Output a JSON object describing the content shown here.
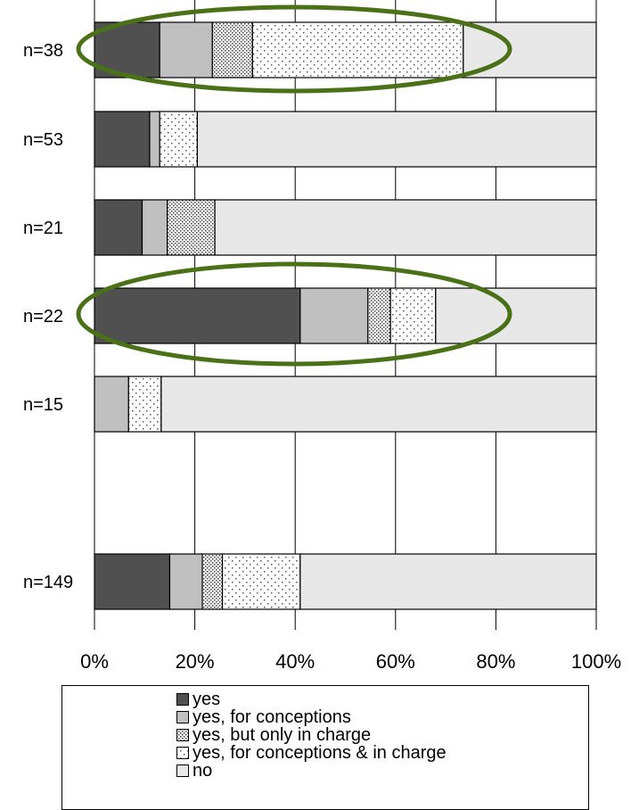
{
  "chart_data": {
    "type": "bar",
    "orientation": "horizontal",
    "stacked": true,
    "normalized": true,
    "categories": [
      "n=38",
      "n=53",
      "n=21",
      "n=22",
      "n=15",
      "n=149"
    ],
    "series": [
      {
        "name": "yes",
        "values": [
          13,
          11,
          9.5,
          41,
          0,
          15
        ],
        "pattern": "solid",
        "color": "#505050"
      },
      {
        "name": "yes, for conceptions",
        "values": [
          10.5,
          2,
          5,
          13.5,
          6.8,
          6.5
        ],
        "pattern": "solid",
        "color": "#c0c0c0"
      },
      {
        "name": "yes, but only in charge",
        "values": [
          8,
          0,
          9.5,
          4.5,
          0,
          4
        ],
        "pattern": "dense-dots",
        "color": "#a0a0a0"
      },
      {
        "name": "yes, for conceptions & in charge",
        "values": [
          42,
          7.5,
          0,
          9,
          6.5,
          15.5
        ],
        "pattern": "sparse-dots",
        "color": "#ffffff"
      },
      {
        "name": "no",
        "values": [
          26.5,
          79.5,
          76,
          32,
          86.7,
          59
        ],
        "pattern": "solid",
        "color": "#e8e8e8"
      }
    ],
    "xticks": [
      "0%",
      "20%",
      "40%",
      "60%",
      "80%",
      "100%"
    ],
    "xlim": [
      0,
      100
    ],
    "grid": true,
    "legend_position": "bottom",
    "highlighted_categories": [
      "n=38",
      "n=22"
    ],
    "highlight_color": "#4a7018"
  },
  "legend_items": [
    {
      "label": "yes"
    },
    {
      "label": "yes, for conceptions"
    },
    {
      "label": "yes, but only in charge"
    },
    {
      "label": "yes, for conceptions & in charge"
    },
    {
      "label": "no"
    }
  ]
}
